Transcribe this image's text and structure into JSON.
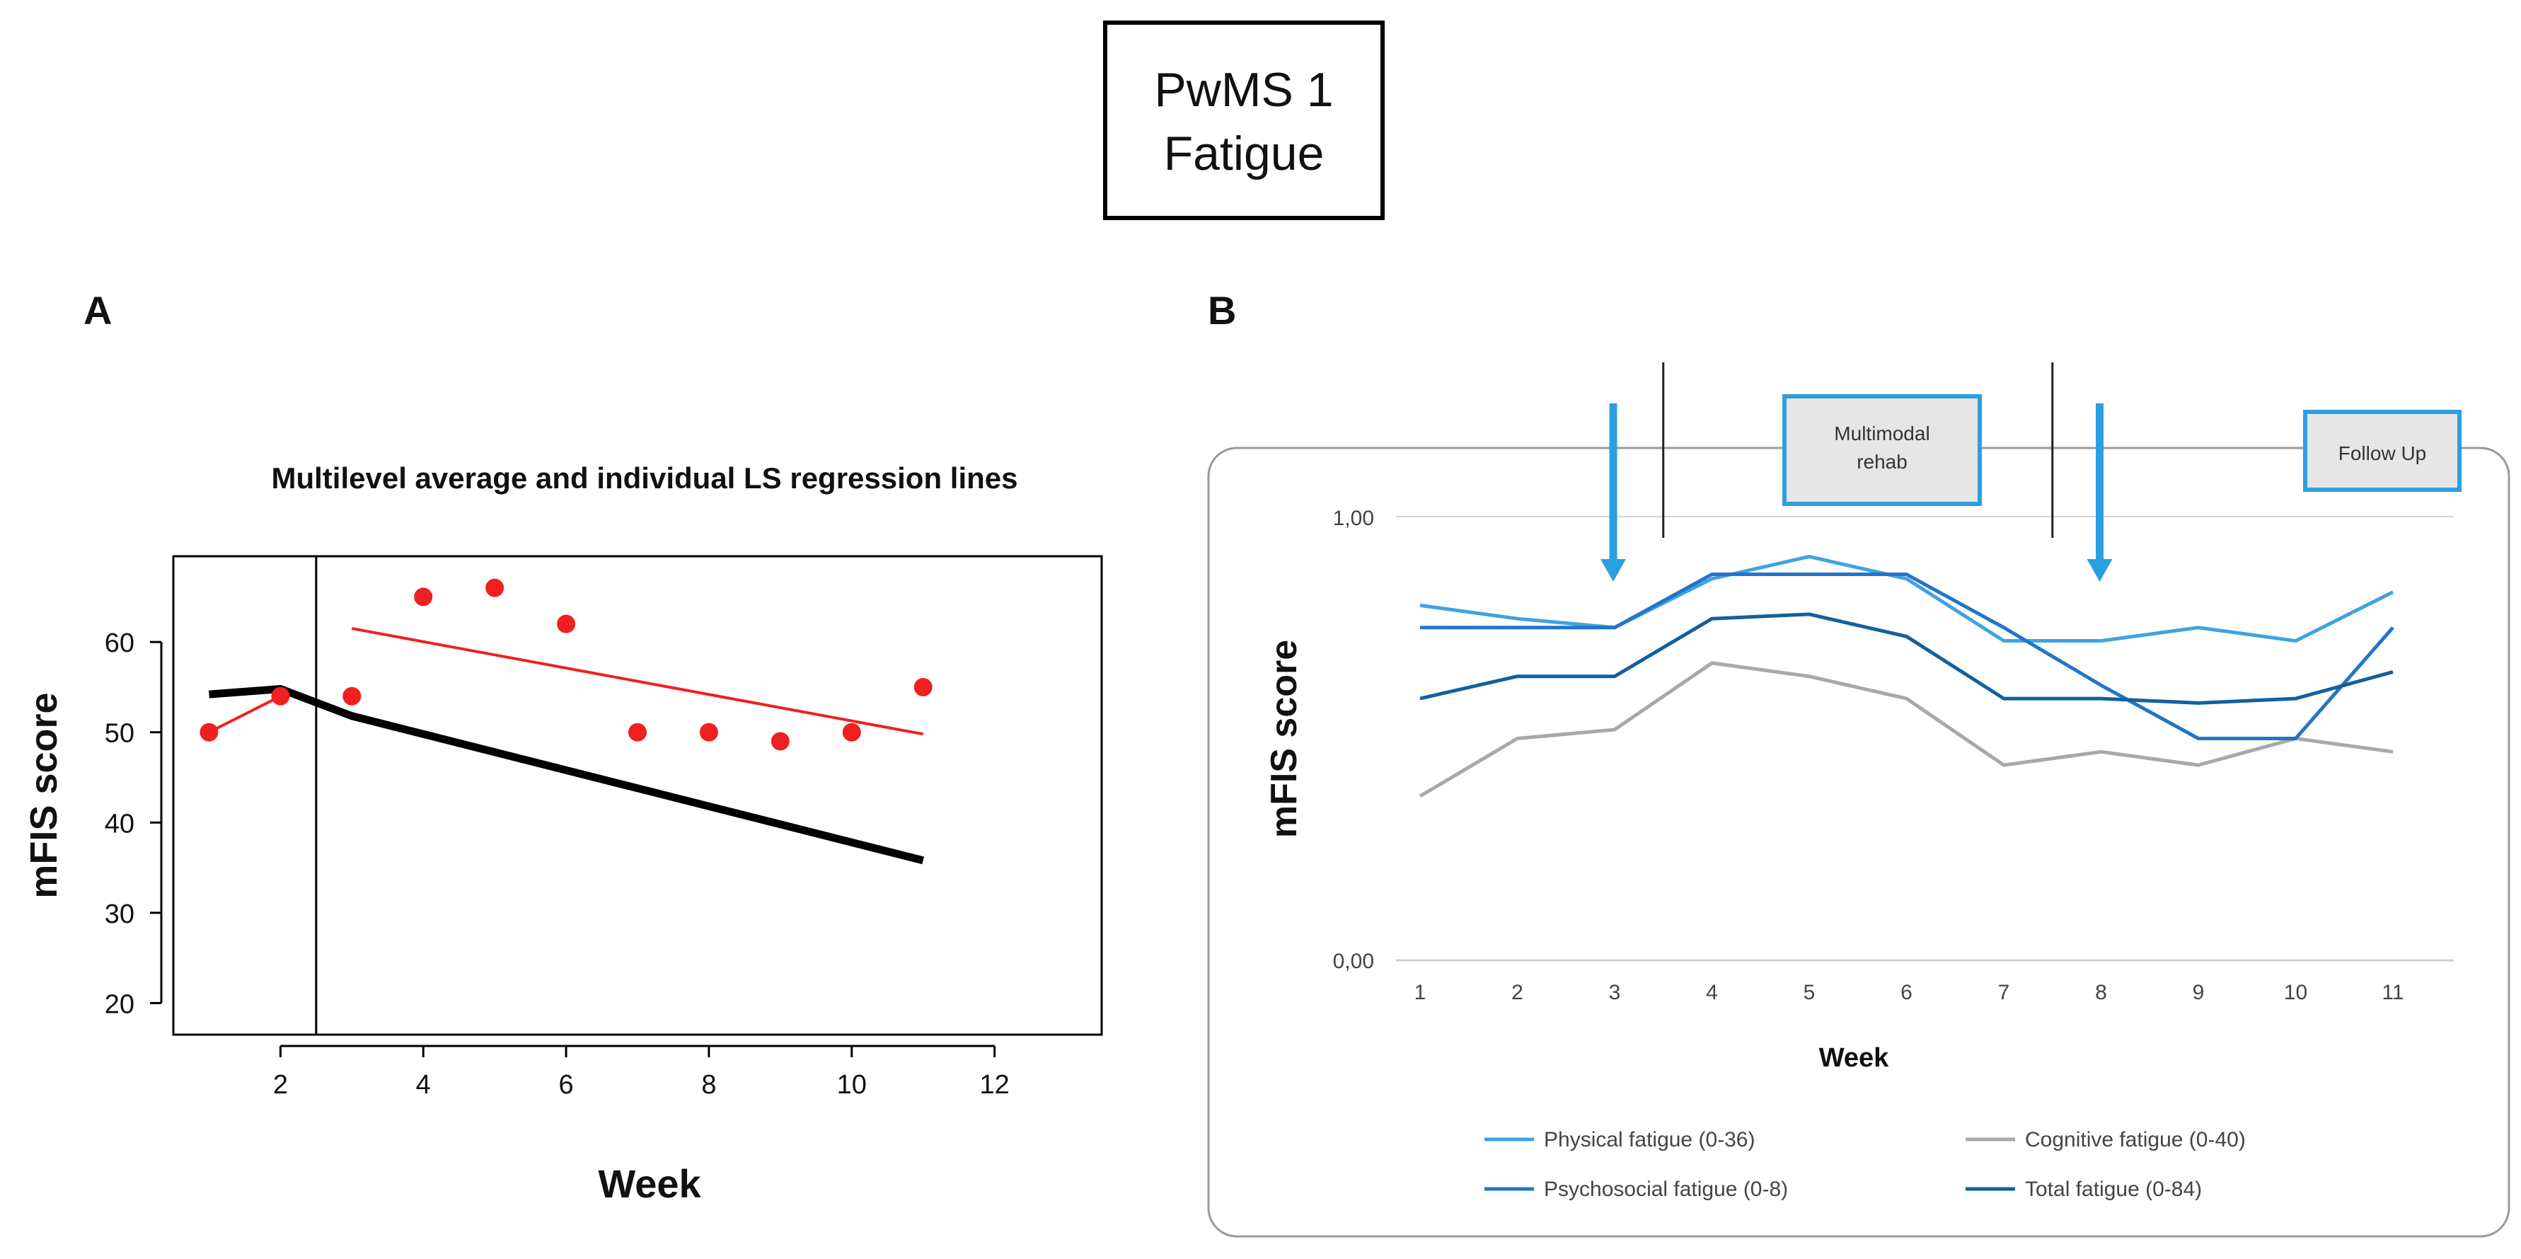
{
  "header": {
    "line1": "PwMS 1",
    "line2": "Fatigue"
  },
  "panel_labels": {
    "a": "A",
    "b": "B"
  },
  "colors": {
    "physical": "#3fa3e0",
    "cognitive": "#a8a8a8",
    "psychosocial": "#2275c8",
    "total": "#12609f",
    "red": "#f02020",
    "black": "#000000",
    "arrow": "#2b9fe0"
  },
  "chart_data": [
    {
      "id": "A",
      "type": "scatter",
      "title": "Multilevel average and individual LS regression lines",
      "xlabel": "Week",
      "ylabel": "mFIS  score",
      "xlim": [
        0.5,
        13.5
      ],
      "ylim": [
        16.5,
        69.5
      ],
      "x_ticks": [
        2,
        4,
        6,
        8,
        10,
        12
      ],
      "y_ticks": [
        20,
        30,
        40,
        50,
        60
      ],
      "phase_boundary_x": 2.5,
      "points": {
        "x": [
          1,
          2,
          3,
          4,
          5,
          6,
          7,
          8,
          9,
          10,
          11
        ],
        "y": [
          50,
          54,
          54,
          65,
          66,
          62,
          50,
          50,
          49,
          50,
          55
        ]
      },
      "individual_lines": [
        {
          "x": [
            1,
            2
          ],
          "y": [
            50,
            54
          ]
        },
        {
          "x": [
            3,
            11
          ],
          "y": [
            61.5,
            49.8
          ]
        }
      ],
      "average_line": {
        "x": [
          1,
          2,
          3,
          11
        ],
        "y": [
          54.2,
          54.8,
          51.8,
          35.8
        ]
      }
    },
    {
      "id": "B",
      "type": "line",
      "xlabel": "Week",
      "ylabel": "mFIS  score",
      "x": [
        1,
        2,
        3,
        4,
        5,
        6,
        7,
        8,
        9,
        10,
        11
      ],
      "ylim": [
        0,
        1
      ],
      "y_tick_labels": [
        "0,00",
        "1,00"
      ],
      "series": [
        {
          "name": "Physical fatigue (0-36)",
          "color_key": "physical",
          "values": [
            0.8,
            0.77,
            0.75,
            0.86,
            0.91,
            0.86,
            0.72,
            0.72,
            0.75,
            0.72,
            0.83
          ]
        },
        {
          "name": "Cognitive fatigue (0-40)",
          "color_key": "cognitive",
          "values": [
            0.37,
            0.5,
            0.52,
            0.67,
            0.64,
            0.59,
            0.44,
            0.47,
            0.44,
            0.5,
            0.47
          ]
        },
        {
          "name": "Psychosocial fatigue (0-8)",
          "color_key": "psychosocial",
          "values": [
            0.75,
            0.75,
            0.75,
            0.87,
            0.87,
            0.87,
            0.75,
            0.62,
            0.5,
            0.5,
            0.75
          ]
        },
        {
          "name": "Total fatigue (0-84)",
          "color_key": "total",
          "values": [
            0.59,
            0.64,
            0.64,
            0.77,
            0.78,
            0.73,
            0.59,
            0.59,
            0.58,
            0.59,
            0.65
          ]
        }
      ],
      "annotations": {
        "phase_labels": [
          "Multimodal\nrehab",
          "Follow Up"
        ],
        "arrows_at_week": [
          3,
          8
        ],
        "phase_boundaries_between_weeks": [
          [
            3,
            4
          ],
          [
            7,
            8
          ]
        ]
      }
    }
  ]
}
